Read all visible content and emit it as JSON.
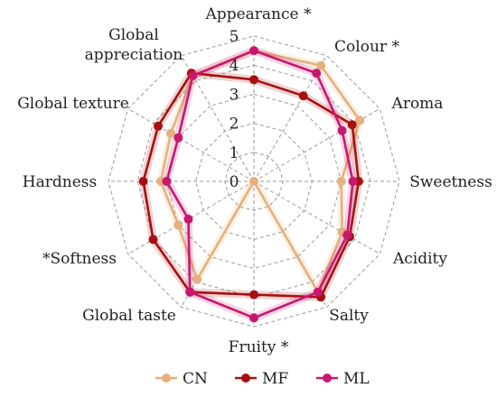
{
  "chart_data": {
    "type": "radar",
    "axes": [
      "Appearance *",
      "Colour *",
      "Aroma",
      "Sweetness",
      "Acidity",
      "Salty",
      "Fruity *",
      "Global taste",
      "*Softness",
      "Hardness",
      "Global texture",
      "Global\nappreciation"
    ],
    "r_ticks": [
      "0",
      "1",
      "2",
      "3",
      "4",
      "5"
    ],
    "r_range": [
      0,
      5
    ],
    "series": [
      {
        "name": "CN",
        "color": "#e6b07c",
        "values": [
          4.5,
          4.6,
          4.2,
          3.0,
          3.5,
          4.4,
          0.0,
          3.9,
          3.0,
          3.2,
          3.3,
          4.2
        ]
      },
      {
        "name": "MF",
        "color": "#a81010",
        "values": [
          3.5,
          3.4,
          3.9,
          3.6,
          3.8,
          4.6,
          3.9,
          4.4,
          4.0,
          3.8,
          3.8,
          4.3
        ]
      },
      {
        "name": "ML",
        "color": "#c8186e",
        "values": [
          4.5,
          4.3,
          3.5,
          3.4,
          3.7,
          4.4,
          4.7,
          4.4,
          2.6,
          3.0,
          3.0,
          4.2
        ]
      }
    ],
    "legend_position": "bottom",
    "grid": true
  }
}
